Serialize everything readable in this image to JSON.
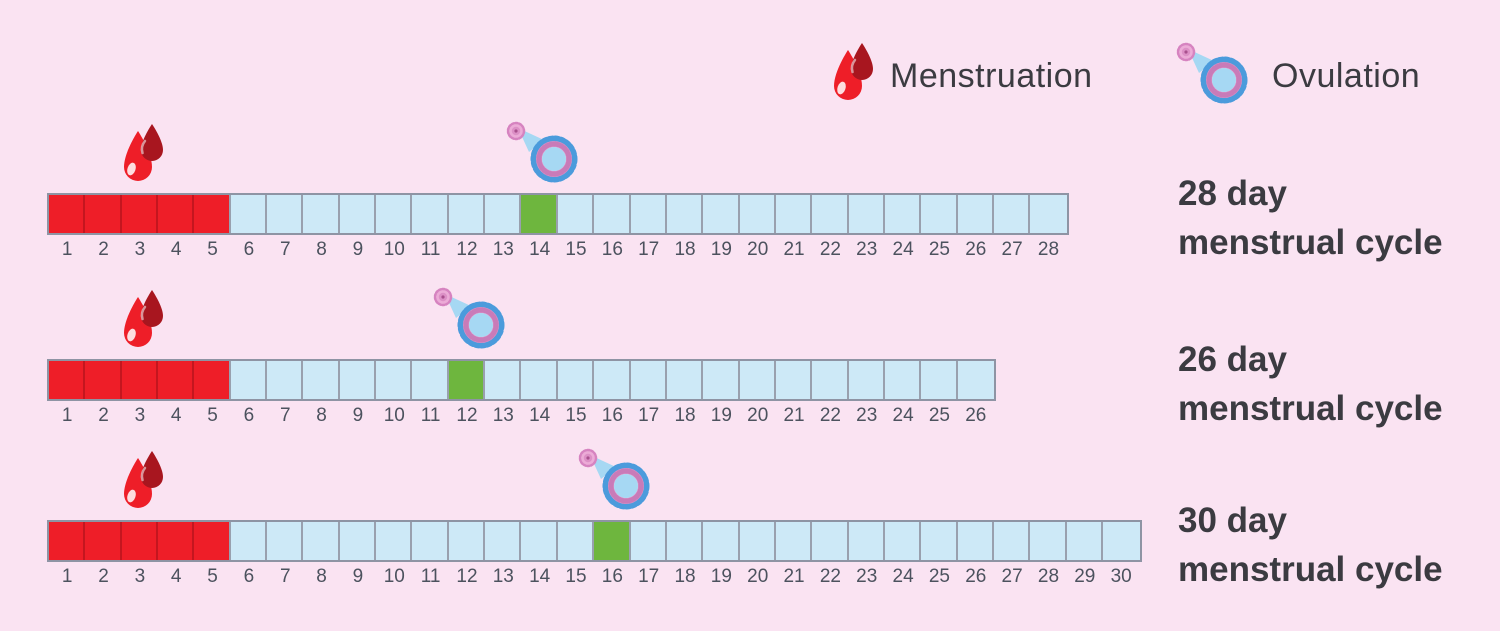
{
  "legend": {
    "menstruation_label": "Menstruation",
    "ovulation_label": "Ovulation"
  },
  "cycles": [
    {
      "days": 28,
      "menstruation_days": 5,
      "ovulation_day": 14,
      "label_line1": "28 day",
      "label_line2": "menstrual cycle"
    },
    {
      "days": 26,
      "menstruation_days": 5,
      "ovulation_day": 12,
      "label_line1": "26 day",
      "label_line2": "menstrual cycle"
    },
    {
      "days": 30,
      "menstruation_days": 5,
      "ovulation_day": 16,
      "label_line1": "30 day",
      "label_line2": "menstrual cycle"
    }
  ],
  "colors": {
    "bg": "#FAE3F2",
    "red": "#EE1E28",
    "red_sep": "#C4161F",
    "blue": "#CDE9F7",
    "green": "#6EB63E",
    "sep": "#99A0AE",
    "bar_border": "#8E94A4",
    "num": "#4C525E",
    "text": "#3B3B41",
    "drop_dark": "#A8161F",
    "oblue": "#4B9BDC",
    "opink": "#DC90C6",
    "oinner": "#A6D8F3",
    "obody": "#ECABD7",
    "white": "#FFFFFF"
  }
}
